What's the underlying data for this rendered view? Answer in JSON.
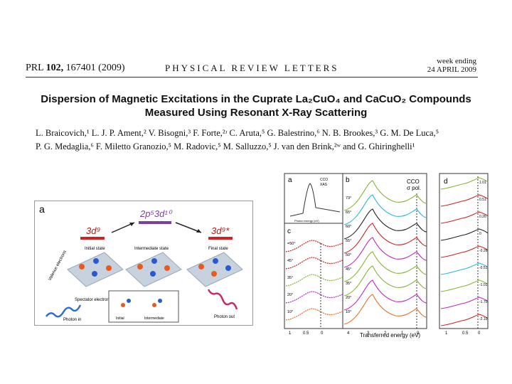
{
  "header": {
    "journal_prefix": "PRL",
    "volume": "102,",
    "article": "167401 (2009)",
    "journal_name": "PHYSICAL REVIEW LETTERS",
    "week_ending_label": "week ending",
    "date": "24 APRIL 2009"
  },
  "title": {
    "line1": "Dispersion of Magnetic Excitations in the Cuprate La₂CuO₄ and CaCuO₂ Compounds",
    "line2": "Measured Using Resonant X-Ray Scattering"
  },
  "authors": {
    "line1": "L. Braicovich,¹ L. J. P. Ament,² V. Bisogni,³ F. Forte,²ʴ C. Aruta,⁵ G. Balestrino,⁶ N. B. Brookes,³ G. M. De Luca,⁵",
    "line2": "P. G. Medaglia,⁶ F. Miletto Granozio,⁵ M. Radovic,⁵ M. Salluzzo,⁵ J. van den Brink,²ʷ and G. Ghiringhelli¹"
  },
  "figure_a": {
    "panel_label": "a",
    "state_initial": "3d⁹",
    "state_intermediate": "2p⁵3d¹⁰",
    "state_final": "3d⁹*",
    "label_initial": "Initial state",
    "label_intermediate": "Intermediate state",
    "label_final": "Final state",
    "label_valence": "Valence electrons",
    "label_spectator": "Spectator electron",
    "label_photon_in": "Photon in",
    "label_photon_out": "Photon out",
    "inset_initial": "Initial",
    "inset_intermediate": "Intermediate"
  },
  "figure_right": {
    "panel_a": "a",
    "panel_b": "b",
    "panel_c": "c",
    "panel_d": "d",
    "xas_line1": "CCO",
    "xas_line2": "XAS",
    "inset_xlabel": "Photon energy (eV)",
    "cco_line1": "CCO",
    "cco_line2": "σ pol.",
    "xlabel": "Transferred energy (eV)",
    "angles_b": [
      "73°",
      "65°",
      "60°",
      "55°",
      "50°",
      "45°",
      "35°",
      "20°",
      "10°"
    ],
    "angles_c": [
      "=50°",
      "45°",
      "35°",
      "20°",
      "10°"
    ],
    "d_values": [
      "1.01",
      "0.51",
      "0.26",
      "0",
      "-0.26",
      "-0.51",
      "-1.01",
      "-1.70",
      "-2.10"
    ],
    "ticks_c": [
      "1",
      "0.5",
      "0"
    ],
    "ticks_b": [
      "4",
      "3",
      "2",
      "1",
      "0"
    ],
    "ticks_d": [
      "1",
      "0.5",
      "0"
    ]
  },
  "colors": {
    "red": "#d42020",
    "purple": "#7a3fa0",
    "green": "#86b43a",
    "cyan": "#2bb8d8",
    "magenta": "#c02ab8",
    "orange": "#e8702a"
  }
}
